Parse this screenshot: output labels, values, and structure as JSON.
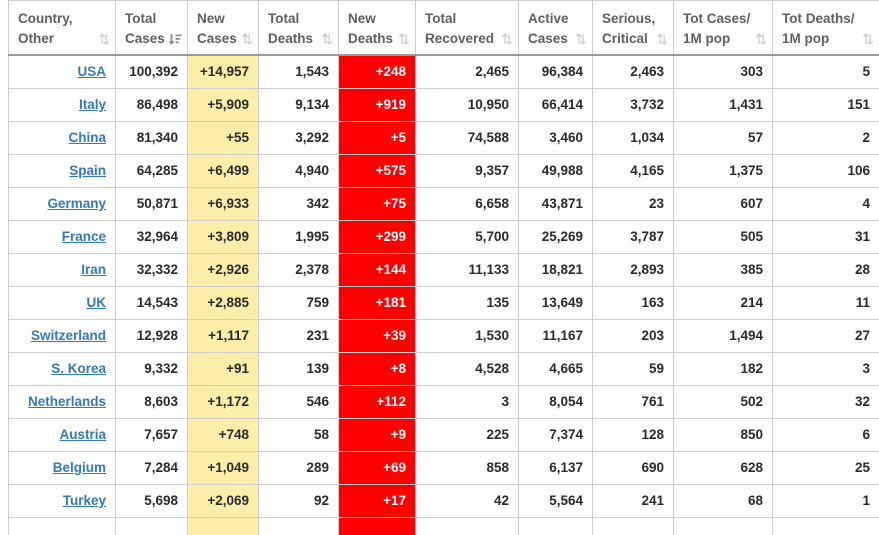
{
  "table": {
    "columns": [
      {
        "key": "country",
        "line1": "Country,",
        "line2": "Other",
        "sort": "inactive"
      },
      {
        "key": "total_cases",
        "line1": "Total",
        "line2": "Cases",
        "sort": "desc"
      },
      {
        "key": "new_cases",
        "line1": "New",
        "line2": "Cases",
        "sort": "inactive"
      },
      {
        "key": "total_deaths",
        "line1": "Total",
        "line2": "Deaths",
        "sort": "inactive"
      },
      {
        "key": "new_deaths",
        "line1": "New",
        "line2": "Deaths",
        "sort": "inactive"
      },
      {
        "key": "total_recovered",
        "line1": "Total",
        "line2": "Recovered",
        "sort": "inactive"
      },
      {
        "key": "active_cases",
        "line1": "Active",
        "line2": "Cases",
        "sort": "inactive"
      },
      {
        "key": "serious_critical",
        "line1": "Serious,",
        "line2": "Critical",
        "sort": "inactive"
      },
      {
        "key": "cases_per_1m",
        "line1": "Tot Cases/",
        "line2": "1M pop",
        "sort": "inactive"
      },
      {
        "key": "deaths_per_1m",
        "line1": "Tot Deaths/",
        "line2": "1M pop",
        "sort": "inactive"
      }
    ],
    "rows": [
      {
        "country": "USA",
        "total_cases": "100,392",
        "new_cases": "+14,957",
        "total_deaths": "1,543",
        "new_deaths": "+248",
        "total_recovered": "2,465",
        "active_cases": "96,384",
        "serious_critical": "2,463",
        "cases_per_1m": "303",
        "deaths_per_1m": "5"
      },
      {
        "country": "Italy",
        "total_cases": "86,498",
        "new_cases": "+5,909",
        "total_deaths": "9,134",
        "new_deaths": "+919",
        "total_recovered": "10,950",
        "active_cases": "66,414",
        "serious_critical": "3,732",
        "cases_per_1m": "1,431",
        "deaths_per_1m": "151"
      },
      {
        "country": "China",
        "total_cases": "81,340",
        "new_cases": "+55",
        "total_deaths": "3,292",
        "new_deaths": "+5",
        "total_recovered": "74,588",
        "active_cases": "3,460",
        "serious_critical": "1,034",
        "cases_per_1m": "57",
        "deaths_per_1m": "2"
      },
      {
        "country": "Spain",
        "total_cases": "64,285",
        "new_cases": "+6,499",
        "total_deaths": "4,940",
        "new_deaths": "+575",
        "total_recovered": "9,357",
        "active_cases": "49,988",
        "serious_critical": "4,165",
        "cases_per_1m": "1,375",
        "deaths_per_1m": "106"
      },
      {
        "country": "Germany",
        "total_cases": "50,871",
        "new_cases": "+6,933",
        "total_deaths": "342",
        "new_deaths": "+75",
        "total_recovered": "6,658",
        "active_cases": "43,871",
        "serious_critical": "23",
        "cases_per_1m": "607",
        "deaths_per_1m": "4"
      },
      {
        "country": "France",
        "total_cases": "32,964",
        "new_cases": "+3,809",
        "total_deaths": "1,995",
        "new_deaths": "+299",
        "total_recovered": "5,700",
        "active_cases": "25,269",
        "serious_critical": "3,787",
        "cases_per_1m": "505",
        "deaths_per_1m": "31"
      },
      {
        "country": "Iran",
        "total_cases": "32,332",
        "new_cases": "+2,926",
        "total_deaths": "2,378",
        "new_deaths": "+144",
        "total_recovered": "11,133",
        "active_cases": "18,821",
        "serious_critical": "2,893",
        "cases_per_1m": "385",
        "deaths_per_1m": "28"
      },
      {
        "country": "UK",
        "total_cases": "14,543",
        "new_cases": "+2,885",
        "total_deaths": "759",
        "new_deaths": "+181",
        "total_recovered": "135",
        "active_cases": "13,649",
        "serious_critical": "163",
        "cases_per_1m": "214",
        "deaths_per_1m": "11"
      },
      {
        "country": "Switzerland",
        "total_cases": "12,928",
        "new_cases": "+1,117",
        "total_deaths": "231",
        "new_deaths": "+39",
        "total_recovered": "1,530",
        "active_cases": "11,167",
        "serious_critical": "203",
        "cases_per_1m": "1,494",
        "deaths_per_1m": "27"
      },
      {
        "country": "S. Korea",
        "total_cases": "9,332",
        "new_cases": "+91",
        "total_deaths": "139",
        "new_deaths": "+8",
        "total_recovered": "4,528",
        "active_cases": "4,665",
        "serious_critical": "59",
        "cases_per_1m": "182",
        "deaths_per_1m": "3"
      },
      {
        "country": "Netherlands",
        "total_cases": "8,603",
        "new_cases": "+1,172",
        "total_deaths": "546",
        "new_deaths": "+112",
        "total_recovered": "3",
        "active_cases": "8,054",
        "serious_critical": "761",
        "cases_per_1m": "502",
        "deaths_per_1m": "32"
      },
      {
        "country": "Austria",
        "total_cases": "7,657",
        "new_cases": "+748",
        "total_deaths": "58",
        "new_deaths": "+9",
        "total_recovered": "225",
        "active_cases": "7,374",
        "serious_critical": "128",
        "cases_per_1m": "850",
        "deaths_per_1m": "6"
      },
      {
        "country": "Belgium",
        "total_cases": "7,284",
        "new_cases": "+1,049",
        "total_deaths": "289",
        "new_deaths": "+69",
        "total_recovered": "858",
        "active_cases": "6,137",
        "serious_critical": "690",
        "cases_per_1m": "628",
        "deaths_per_1m": "25"
      },
      {
        "country": "Turkey",
        "total_cases": "5,698",
        "new_cases": "+2,069",
        "total_deaths": "92",
        "new_deaths": "+17",
        "total_recovered": "42",
        "active_cases": "5,564",
        "serious_critical": "241",
        "cases_per_1m": "68",
        "deaths_per_1m": "1"
      }
    ],
    "sort_icons": {
      "inactive_glyph": "⇅"
    },
    "colors": {
      "new_cases_bg": "#FFEEAA",
      "new_deaths_bg": "#FF0000",
      "new_deaths_text": "#FFFFFF",
      "link": "#337AB7",
      "header_text": "#5F5F5F",
      "body_text": "#2A2A2A",
      "sort_inactive": "#C9C9C9",
      "sort_active": "#8C8C8C"
    }
  }
}
